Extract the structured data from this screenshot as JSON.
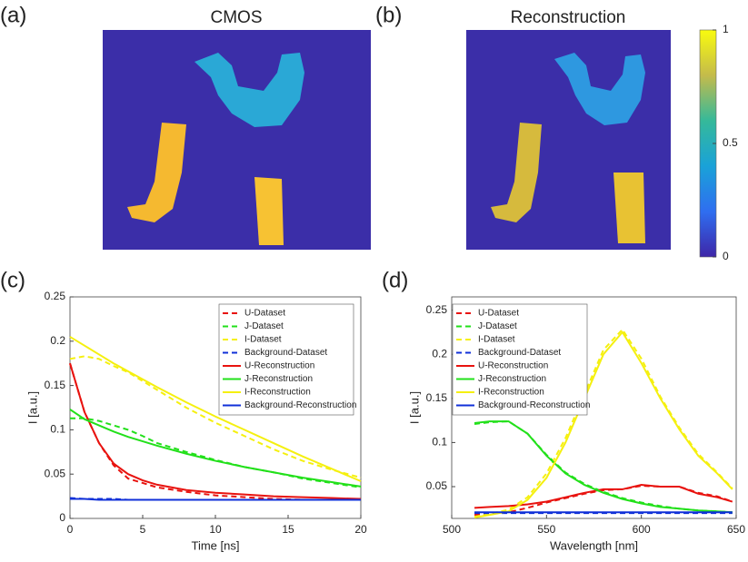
{
  "chart_data": [
    {
      "type": "image",
      "panel": "(a)",
      "title": "CMOS"
    },
    {
      "type": "image",
      "panel": "(b)",
      "title": "Reconstruction",
      "clim": [
        0,
        1
      ],
      "cticks": [
        0,
        0.5,
        1
      ]
    },
    {
      "type": "line",
      "panel": "(c)",
      "xlabel": "Time [ns]",
      "ylabel": "I [a.u.]",
      "legend": "upper right",
      "x": [
        0,
        1,
        2,
        3,
        4,
        5,
        6,
        8,
        10,
        12,
        14,
        16,
        18,
        20
      ],
      "xlim": [
        0,
        20
      ],
      "xticks": [
        0,
        5,
        10,
        15,
        20
      ],
      "ylim": [
        0,
        0.25
      ],
      "yticks": [
        0,
        0.05,
        0.1,
        0.15,
        0.2,
        0.25
      ],
      "series": [
        {
          "name": "U-Dataset",
          "color": "#e8130f",
          "style": "dashed",
          "values": [
            0.175,
            0.12,
            0.085,
            0.06,
            0.045,
            0.04,
            0.035,
            0.03,
            0.026,
            0.024,
            0.022,
            0.021,
            0.021,
            0.021
          ]
        },
        {
          "name": "J-Dataset",
          "color": "#22e01a",
          "style": "dashed",
          "values": [
            0.113,
            0.113,
            0.11,
            0.105,
            0.1,
            0.093,
            0.085,
            0.075,
            0.066,
            0.058,
            0.052,
            0.045,
            0.04,
            0.035
          ]
        },
        {
          "name": "I-Dataset",
          "color": "#f5f00f",
          "style": "dashed",
          "values": [
            0.18,
            0.183,
            0.18,
            0.172,
            0.165,
            0.155,
            0.145,
            0.125,
            0.108,
            0.093,
            0.078,
            0.065,
            0.055,
            0.046
          ]
        },
        {
          "name": "Background-Dataset",
          "color": "#1030d8",
          "style": "dashed",
          "values": [
            0.023,
            0.022,
            0.022,
            0.022,
            0.021,
            0.021,
            0.021,
            0.021,
            0.021,
            0.021,
            0.021,
            0.021,
            0.021,
            0.021
          ]
        },
        {
          "name": "U-Reconstruction",
          "color": "#e8130f",
          "style": "solid",
          "values": [
            0.175,
            0.12,
            0.085,
            0.062,
            0.05,
            0.043,
            0.038,
            0.032,
            0.029,
            0.027,
            0.025,
            0.024,
            0.023,
            0.022
          ]
        },
        {
          "name": "J-Reconstruction",
          "color": "#22e01a",
          "style": "solid",
          "values": [
            0.123,
            0.112,
            0.105,
            0.098,
            0.092,
            0.087,
            0.082,
            0.073,
            0.065,
            0.058,
            0.052,
            0.046,
            0.041,
            0.036
          ]
        },
        {
          "name": "I-Reconstruction",
          "color": "#f5f00f",
          "style": "solid",
          "values": [
            0.205,
            0.195,
            0.185,
            0.175,
            0.166,
            0.157,
            0.148,
            0.131,
            0.115,
            0.1,
            0.085,
            0.07,
            0.056,
            0.042
          ]
        },
        {
          "name": "Background-Reconstruction",
          "color": "#1030d8",
          "style": "solid",
          "values": [
            0.022,
            0.022,
            0.021,
            0.021,
            0.021,
            0.021,
            0.021,
            0.021,
            0.021,
            0.021,
            0.021,
            0.021,
            0.021,
            0.021
          ]
        }
      ]
    },
    {
      "type": "line",
      "panel": "(d)",
      "xlabel": "Wavelength [nm]",
      "ylabel": "I [a.u.]",
      "legend": "upper left",
      "x": [
        512,
        520,
        530,
        540,
        550,
        560,
        570,
        580,
        590,
        600,
        610,
        620,
        630,
        640,
        648
      ],
      "xlim": [
        500,
        650
      ],
      "xticks": [
        500,
        550,
        600,
        650
      ],
      "ylim": [
        0.014,
        0.265
      ],
      "yticks": [
        0.05,
        0.1,
        0.15,
        0.2,
        0.25
      ],
      "series": [
        {
          "name": "U-Dataset",
          "color": "#e8130f",
          "style": "dashed",
          "values": [
            0.018,
            0.019,
            0.021,
            0.026,
            0.032,
            0.037,
            0.042,
            0.046,
            0.047,
            0.051,
            0.05,
            0.05,
            0.043,
            0.039,
            0.033
          ]
        },
        {
          "name": "J-Dataset",
          "color": "#22e01a",
          "style": "dashed",
          "values": [
            0.121,
            0.123,
            0.124,
            0.11,
            0.086,
            0.066,
            0.053,
            0.044,
            0.037,
            0.032,
            0.028,
            0.025,
            0.023,
            0.022,
            0.021
          ]
        },
        {
          "name": "I-Dataset",
          "color": "#f5f00f",
          "style": "dashed",
          "values": [
            0.016,
            0.019,
            0.024,
            0.038,
            0.065,
            0.105,
            0.155,
            0.205,
            0.228,
            0.195,
            0.152,
            0.117,
            0.087,
            0.066,
            0.048
          ]
        },
        {
          "name": "Background-Dataset",
          "color": "#1030d8",
          "style": "dashed",
          "values": [
            0.02,
            0.02,
            0.02,
            0.02,
            0.02,
            0.02,
            0.02,
            0.02,
            0.02,
            0.02,
            0.02,
            0.02,
            0.02,
            0.02,
            0.02
          ]
        },
        {
          "name": "U-Reconstruction",
          "color": "#e8130f",
          "style": "solid",
          "values": [
            0.026,
            0.027,
            0.028,
            0.03,
            0.033,
            0.038,
            0.043,
            0.047,
            0.047,
            0.052,
            0.05,
            0.05,
            0.042,
            0.038,
            0.033
          ]
        },
        {
          "name": "J-Reconstruction",
          "color": "#22e01a",
          "style": "solid",
          "values": [
            0.122,
            0.124,
            0.124,
            0.11,
            0.085,
            0.065,
            0.052,
            0.043,
            0.036,
            0.031,
            0.027,
            0.025,
            0.023,
            0.022,
            0.021
          ]
        },
        {
          "name": "I-Reconstruction",
          "color": "#f5f00f",
          "style": "solid",
          "values": [
            0.015,
            0.018,
            0.022,
            0.035,
            0.06,
            0.1,
            0.15,
            0.2,
            0.225,
            0.19,
            0.15,
            0.115,
            0.085,
            0.065,
            0.047
          ]
        },
        {
          "name": "Background-Reconstruction",
          "color": "#1030d8",
          "style": "solid",
          "values": [
            0.021,
            0.021,
            0.021,
            0.021,
            0.021,
            0.021,
            0.021,
            0.021,
            0.021,
            0.021,
            0.021,
            0.021,
            0.021,
            0.021,
            0.021
          ]
        }
      ]
    }
  ]
}
